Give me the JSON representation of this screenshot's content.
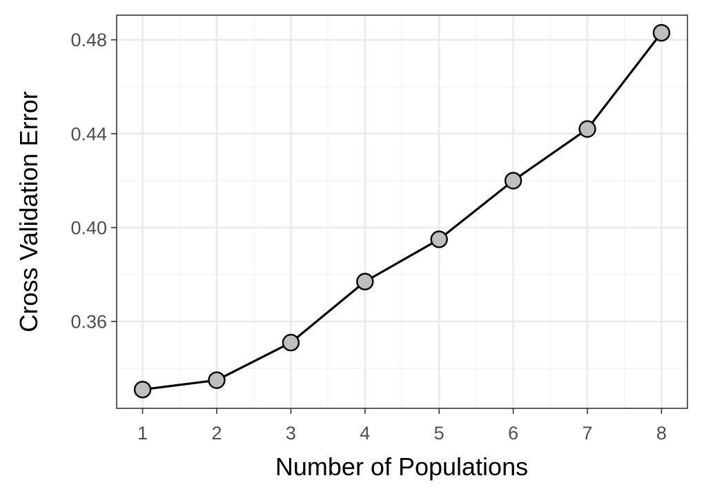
{
  "chart_data": {
    "type": "line",
    "title": "",
    "xlabel": "Number of Populations",
    "ylabel": "Cross Validation Error",
    "x": [
      1,
      2,
      3,
      4,
      5,
      6,
      7,
      8
    ],
    "y": [
      0.331,
      0.335,
      0.351,
      0.377,
      0.395,
      0.42,
      0.442,
      0.483
    ],
    "xlim": [
      0.65,
      8.35
    ],
    "ylim": [
      0.323,
      0.4905
    ],
    "x_ticks": [
      1,
      2,
      3,
      4,
      5,
      6,
      7,
      8
    ],
    "x_tick_labels": [
      "1",
      "2",
      "3",
      "4",
      "5",
      "6",
      "7",
      "8"
    ],
    "y_ticks": [
      0.36,
      0.4,
      0.44,
      0.48
    ],
    "y_tick_labels": [
      "0.36",
      "0.40",
      "0.44",
      "0.48"
    ],
    "grid": true,
    "legend": "none",
    "colors": {
      "line": "#000000",
      "marker_fill": "#bebebe",
      "marker_stroke": "#000000",
      "grid_major": "#ebebeb",
      "grid_minor": "#f3f3f3",
      "panel_border": "#333333",
      "tick_text": "#4d4d4d",
      "axis_title": "#000000"
    }
  }
}
